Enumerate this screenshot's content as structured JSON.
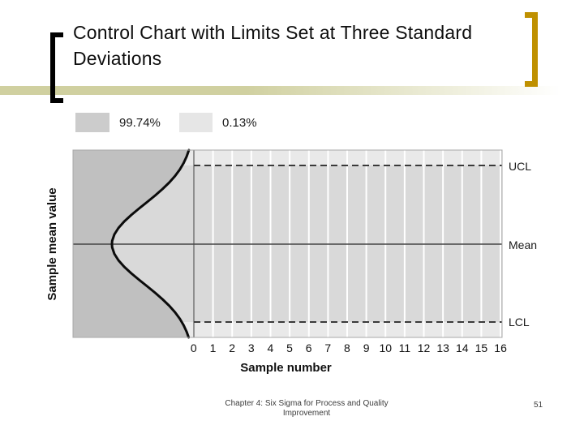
{
  "title": "Control Chart with Limits Set at Three Standard Deviations",
  "legend": {
    "items": [
      {
        "label": "99.74%"
      },
      {
        "label": "0.13%"
      }
    ]
  },
  "chart_data": {
    "type": "area",
    "subtype": "control-chart-diagram",
    "x": {
      "label": "Sample number",
      "ticks": [
        "0",
        "1",
        "2",
        "3",
        "4",
        "5",
        "6",
        "7",
        "8",
        "9",
        "10",
        "11",
        "12",
        "13",
        "14",
        "15",
        "16"
      ]
    },
    "y": {
      "label": "Sample mean value"
    },
    "reference_lines": [
      {
        "name": "UCL",
        "style": "dashed",
        "position_sigma": 3
      },
      {
        "name": "Mean",
        "style": "solid",
        "position_sigma": 0
      },
      {
        "name": "LCL",
        "style": "dashed",
        "position_sigma": -3
      }
    ],
    "distribution": {
      "shape": "normal",
      "orientation": "rotated-90-peak-left",
      "within_limits_pct": 99.74,
      "outside_each_tail_pct": 0.13
    },
    "grid": "vertical-white-gridlines-at-each-sample",
    "legend_position": "above-chart-left"
  },
  "colors": {
    "gold": "#bf9000",
    "band": "#d0d0a0",
    "dark_area": "#c0c0c0",
    "mid_band": "#d9d9d9",
    "light_band": "#e9e9e9",
    "swatch_dark": "#cccccc",
    "swatch_light": "#e6e6e6"
  },
  "footer": {
    "line1": "Chapter 4: Six Sigma for Process and Quality",
    "line2": "Improvement",
    "page": "51"
  }
}
